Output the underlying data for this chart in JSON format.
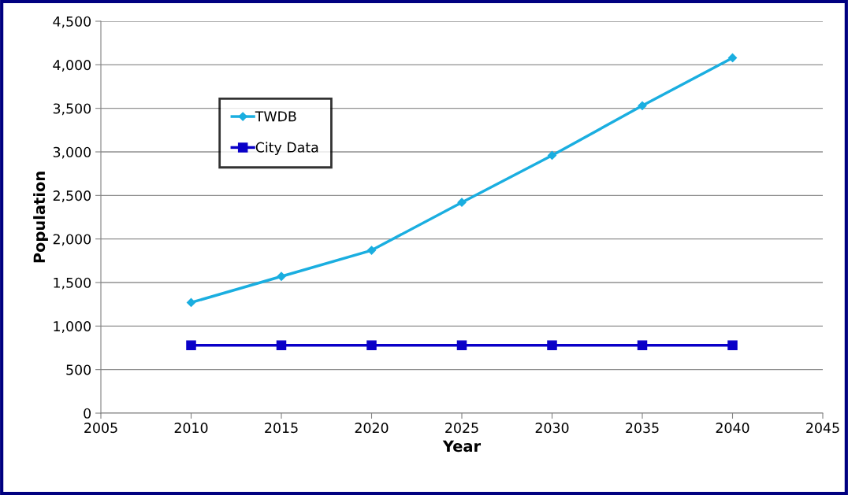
{
  "chart_data": {
    "type": "line",
    "xlabel": "Year",
    "ylabel": "Population",
    "x": [
      2010,
      2015,
      2020,
      2025,
      2030,
      2035,
      2040
    ],
    "series": [
      {
        "name": "TWDB",
        "color": "#1aaee0",
        "marker": "diamond",
        "values": [
          1270,
          1570,
          1870,
          2420,
          2960,
          3530,
          4080
        ]
      },
      {
        "name": "City Data",
        "color": "#0a00c8",
        "marker": "square",
        "values": [
          780,
          780,
          780,
          780,
          780,
          780,
          780
        ]
      }
    ],
    "xlim": [
      2005,
      2045
    ],
    "xticks": [
      2005,
      2010,
      2015,
      2020,
      2025,
      2030,
      2035,
      2040,
      2045
    ],
    "ylim": [
      0,
      4500
    ],
    "yticks": [
      {
        "value": 0,
        "label": "0"
      },
      {
        "value": 500,
        "label": "500"
      },
      {
        "value": 1000,
        "label": "1,000"
      },
      {
        "value": 1500,
        "label": "1,500"
      },
      {
        "value": 2000,
        "label": "2,000"
      },
      {
        "value": 2500,
        "label": "2,500"
      },
      {
        "value": 3000,
        "label": "3,000"
      },
      {
        "value": 3500,
        "label": "3,500"
      },
      {
        "value": 4000,
        "label": "4,000"
      },
      {
        "value": 4500,
        "label": "4,500"
      }
    ],
    "grid": "y",
    "legend": "top left",
    "line_style": "solid"
  }
}
